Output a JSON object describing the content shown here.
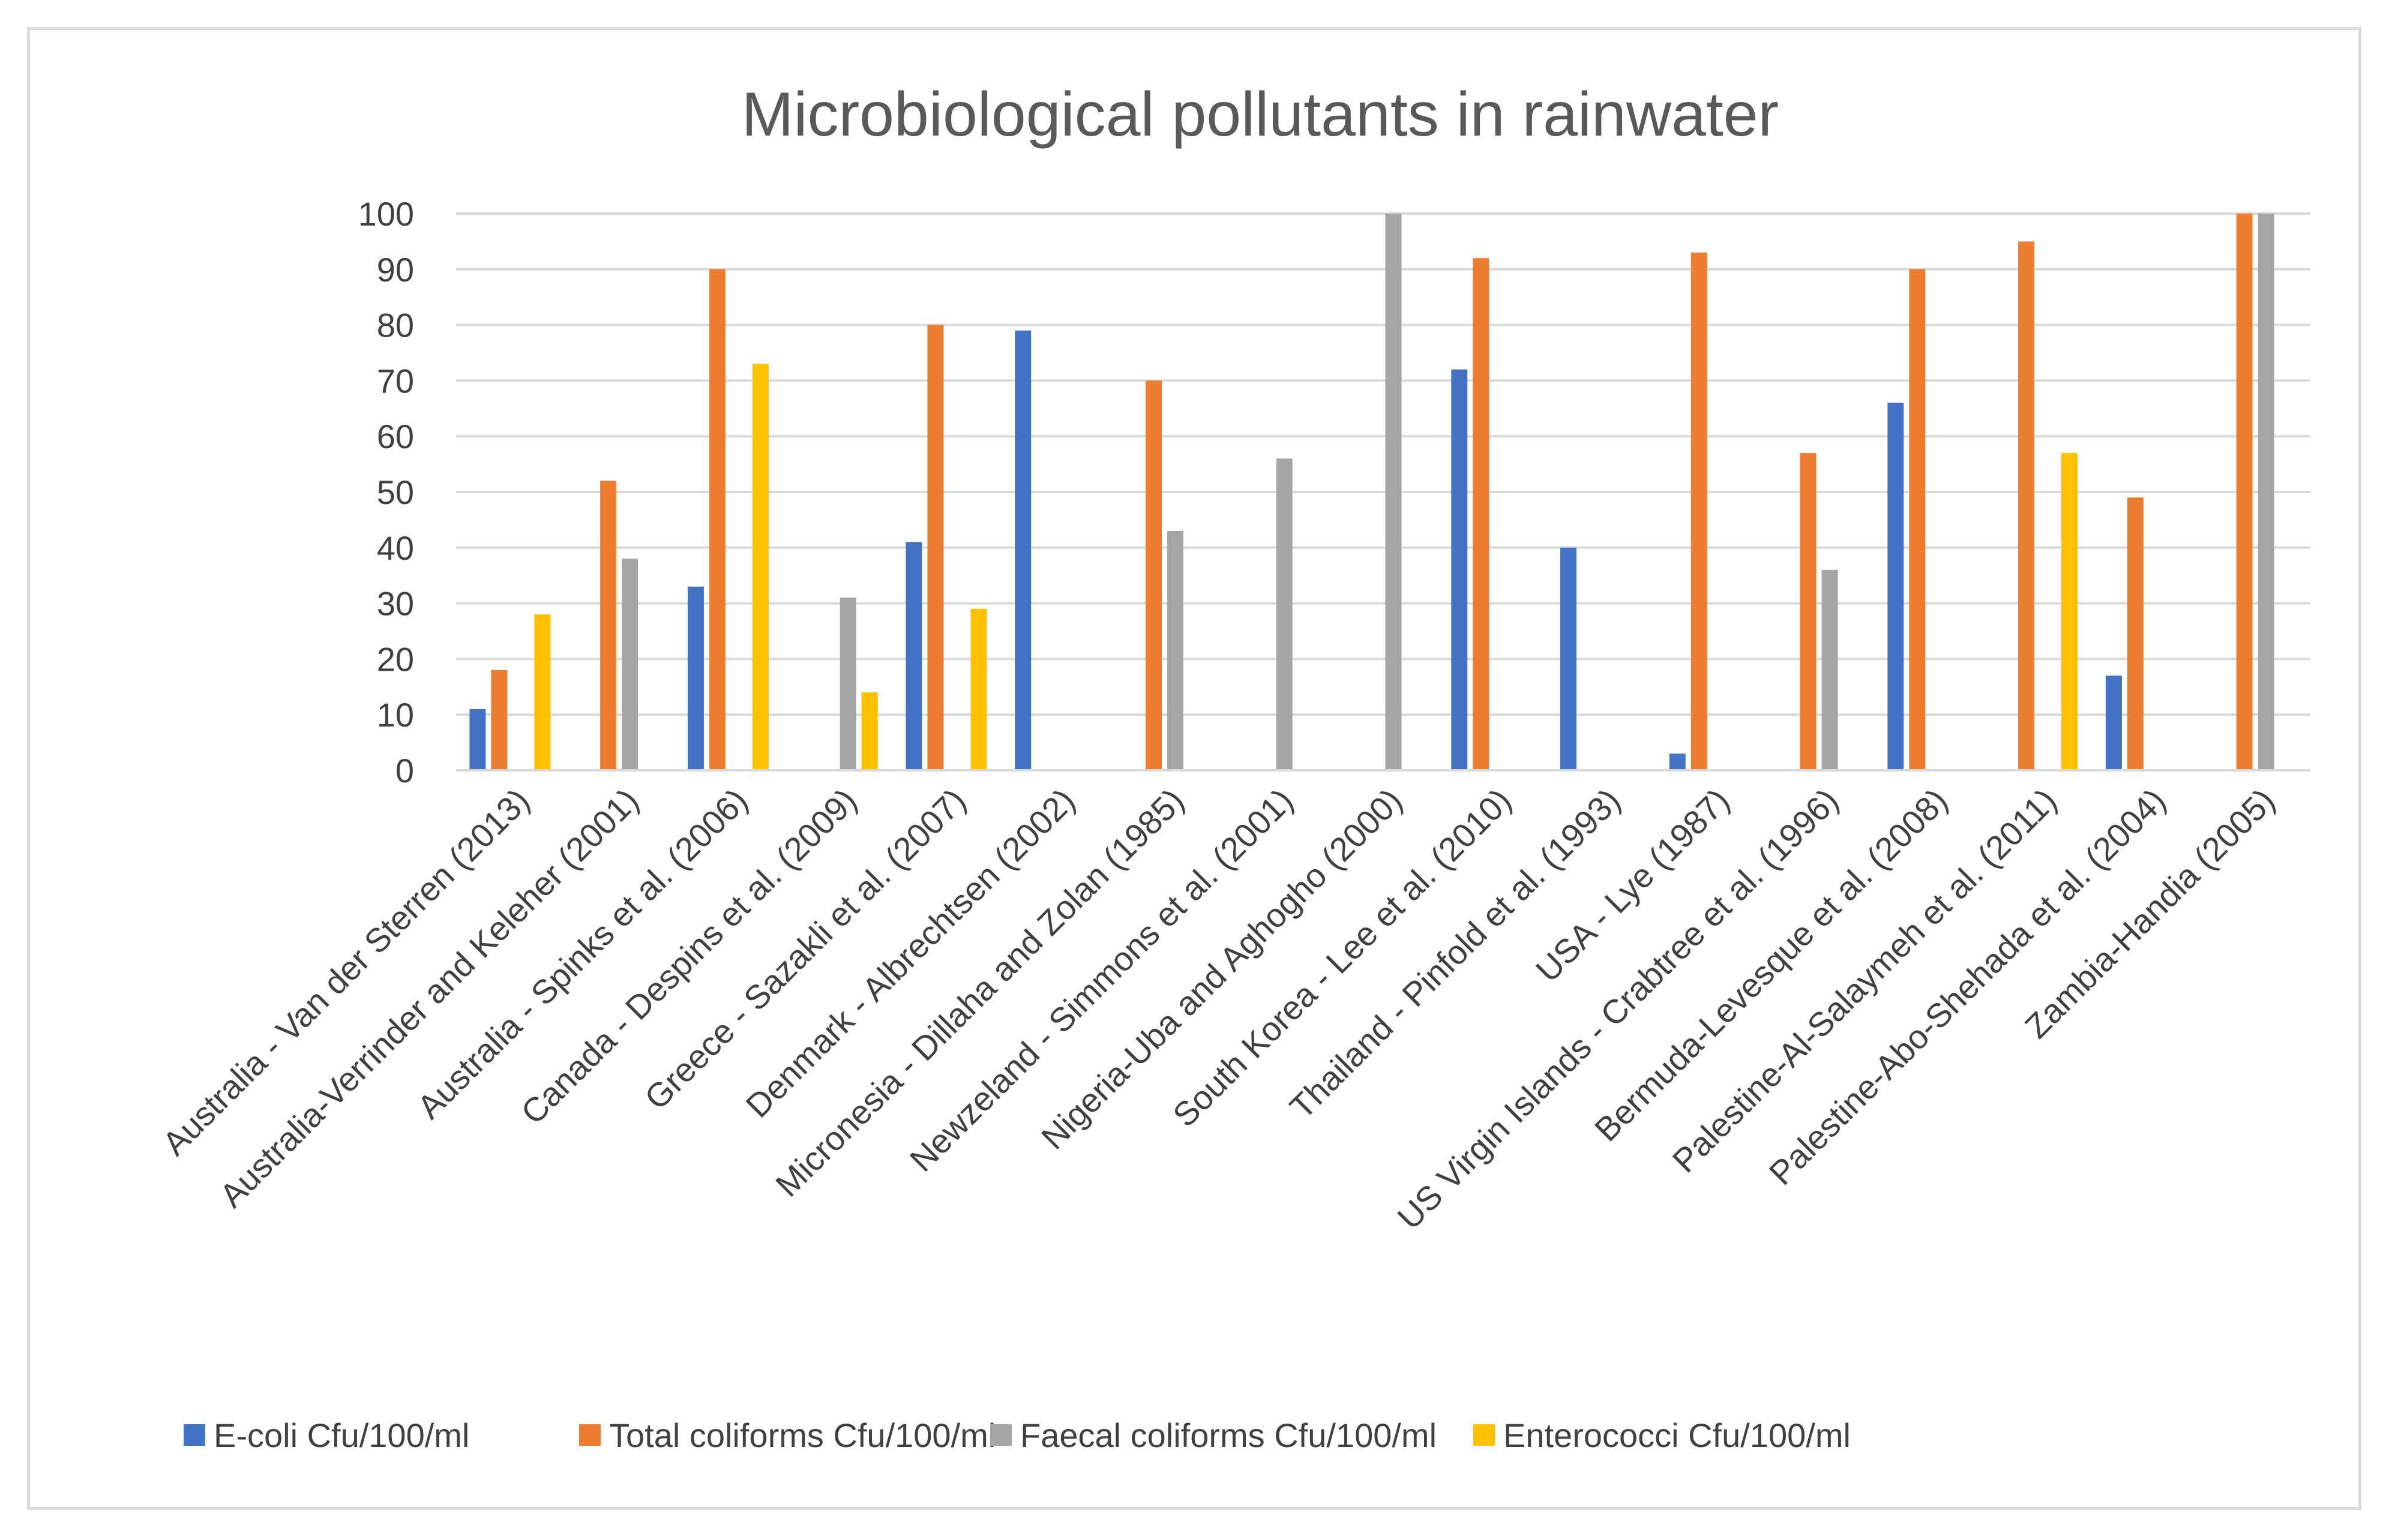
{
  "chart_data": {
    "type": "bar",
    "title": "Microbiological pollutants in rainwater",
    "xlabel": "",
    "ylabel": "",
    "ylim": [
      0,
      100
    ],
    "yticks": [
      0,
      10,
      20,
      30,
      40,
      50,
      60,
      70,
      80,
      90,
      100
    ],
    "grid": true,
    "legend_position": "bottom",
    "categories": [
      "Australia - Van der  Sterren (2013)",
      "Australia-Verrinder and Keleher (2001)",
      "Australia - Spinks et al. (2006)",
      "Canada - Despins et al. (2009)",
      "Greece - Sazakli et al. (2007)",
      "Denmark - Albrechtsen (2002)",
      "Micronesia - Dillaha and Zolan (1985)",
      "Newzeland - Simmons et al. (2001)",
      "Nigeria-Uba and Aghogho (2000)",
      "South Korea - Lee et al. (2010)",
      "Thailand - Pinfold et al. (1993)",
      "USA - Lye (1987)",
      "US Virgin Islands - Crabtree et al. (1996)",
      "Bermuda-Levesque et al. (2008)",
      "Palestine-Al-Salaymeh et al. (2011)",
      "Palestine-Abo-Shehada et al. (2004)",
      "Zambia-Handia (2005)"
    ],
    "series": [
      {
        "name": "E-coli Cfu/100/ml",
        "color": "#4472c4",
        "values": [
          11,
          null,
          33,
          null,
          41,
          79,
          null,
          null,
          null,
          72,
          40,
          3,
          null,
          66,
          null,
          17,
          null
        ]
      },
      {
        "name": "Total coliforms  Cfu/100/ml",
        "color": "#ed7d31",
        "values": [
          18,
          52,
          90,
          null,
          80,
          null,
          70,
          null,
          null,
          92,
          null,
          93,
          57,
          90,
          95,
          49,
          100
        ]
      },
      {
        "name": "Faecal coliforms  Cfu/100/ml",
        "color": "#a5a5a5",
        "values": [
          null,
          38,
          null,
          31,
          null,
          null,
          43,
          56,
          100,
          null,
          null,
          null,
          36,
          null,
          null,
          null,
          100
        ]
      },
      {
        "name": "Enterococci Cfu/100/ml",
        "color": "#ffc000",
        "values": [
          28,
          null,
          73,
          14,
          29,
          null,
          null,
          null,
          null,
          null,
          null,
          null,
          null,
          null,
          57,
          null,
          null
        ]
      }
    ]
  }
}
